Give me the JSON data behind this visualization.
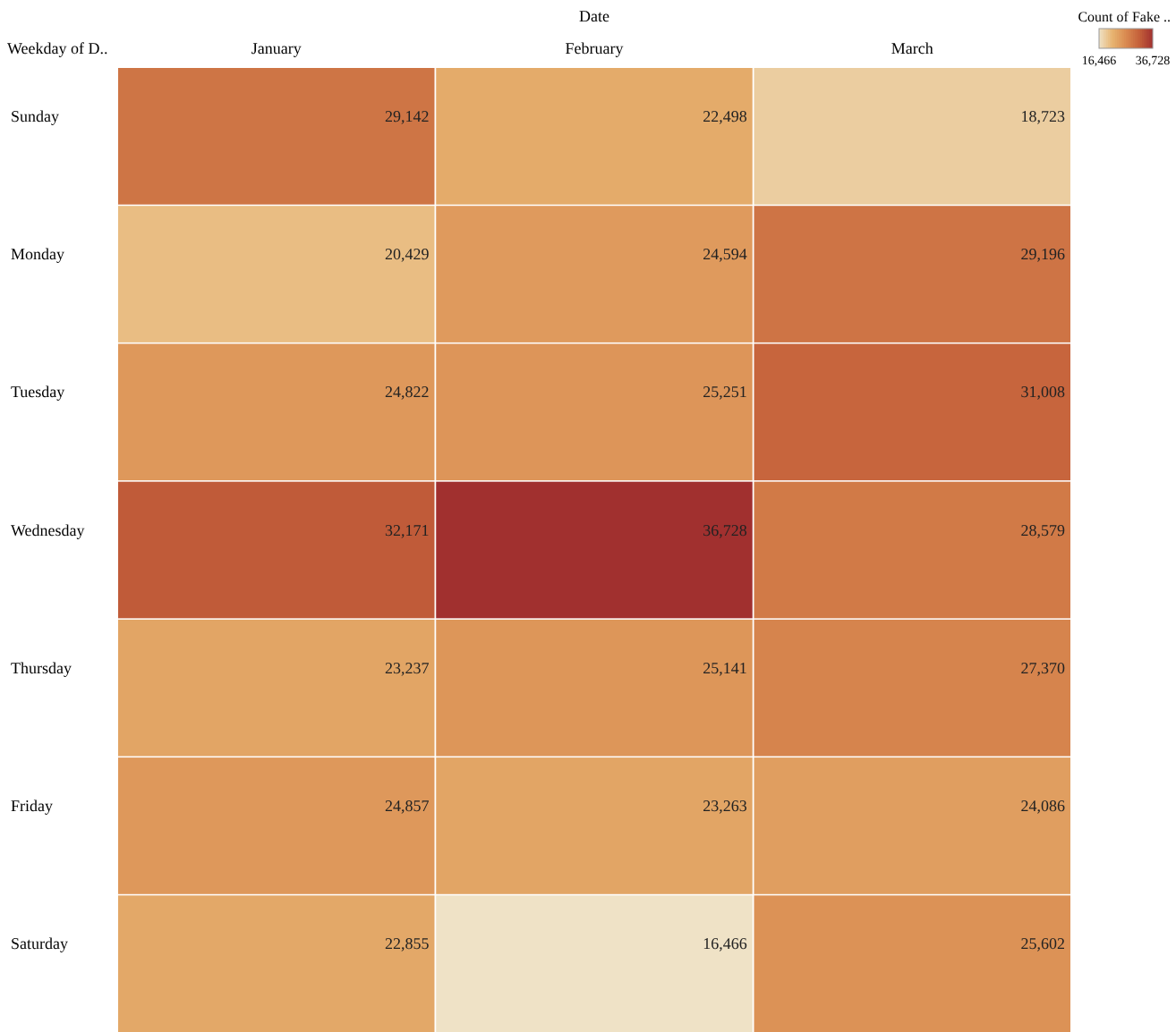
{
  "chart_data": {
    "type": "heatmap",
    "xlabel": "Date",
    "ylabel": "Weekday of D..",
    "clabel": "Count of Fake ..",
    "categories": [
      "January",
      "February",
      "March"
    ],
    "y_categories": [
      "Sunday",
      "Monday",
      "Tuesday",
      "Wednesday",
      "Thursday",
      "Friday",
      "Saturday"
    ],
    "cells": [
      [
        29142,
        22498,
        18723
      ],
      [
        20429,
        24594,
        29196
      ],
      [
        24822,
        25251,
        31008
      ],
      [
        32171,
        36728,
        28579
      ],
      [
        23237,
        25141,
        27370
      ],
      [
        24857,
        23263,
        24086
      ],
      [
        22855,
        16466,
        25602
      ]
    ],
    "clim": [
      16466,
      36728
    ],
    "cticks": [
      {
        "value": 16466,
        "label": "16,466"
      },
      {
        "value": 36728,
        "label": "36,728"
      }
    ],
    "cell_labels": [
      [
        "29,142",
        "22,498",
        "18,723"
      ],
      [
        "20,429",
        "24,594",
        "29,196"
      ],
      [
        "24,822",
        "25,251",
        "31,008"
      ],
      [
        "32,171",
        "36,728",
        "28,579"
      ],
      [
        "23,237",
        "25,141",
        "27,370"
      ],
      [
        "24,857",
        "23,263",
        "24,086"
      ],
      [
        "22,855",
        "16,466",
        "25,602"
      ]
    ],
    "data_labels": true
  }
}
